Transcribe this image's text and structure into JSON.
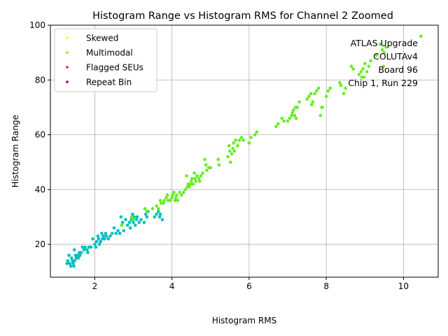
{
  "chart_data": {
    "type": "scatter",
    "title": "Histogram Range vs Histogram RMS for Channel 2 Zoomed",
    "xlabel": "Histogram RMS",
    "ylabel": "Histogram Range",
    "xlim": [
      0.85,
      10.9
    ],
    "ylim": [
      8,
      100
    ],
    "xticks": [
      2,
      4,
      6,
      8,
      10
    ],
    "yticks": [
      20,
      40,
      60,
      80,
      100
    ],
    "grid": true,
    "legend_position": "top-left",
    "legend": [
      {
        "name": "Skewed",
        "color": "#ffff00"
      },
      {
        "name": "Multimodal",
        "color": "#7fff00"
      },
      {
        "name": "Flagged SEUs",
        "color": "#d62728"
      },
      {
        "name": "Repeat Bin",
        "color": "#800080"
      }
    ],
    "annotation": [
      "ATLAS Upgrade",
      "COLUTAv4",
      "Board 96",
      "Chip 1, Run 229"
    ],
    "series": [
      {
        "color": "#00bfbf",
        "points": [
          [
            1.28,
            13
          ],
          [
            1.3,
            14
          ],
          [
            1.33,
            16
          ],
          [
            1.35,
            13
          ],
          [
            1.38,
            12
          ],
          [
            1.4,
            15
          ],
          [
            1.42,
            14
          ],
          [
            1.44,
            13
          ],
          [
            1.46,
            12
          ],
          [
            1.47,
            18
          ],
          [
            1.48,
            14
          ],
          [
            1.5,
            16
          ],
          [
            1.52,
            15
          ],
          [
            1.55,
            16
          ],
          [
            1.58,
            15
          ],
          [
            1.6,
            17
          ],
          [
            1.62,
            16
          ],
          [
            1.65,
            17
          ],
          [
            1.68,
            19
          ],
          [
            1.72,
            18
          ],
          [
            1.75,
            19
          ],
          [
            1.8,
            18
          ],
          [
            1.82,
            17
          ],
          [
            1.85,
            19
          ],
          [
            1.9,
            19
          ],
          [
            1.95,
            22
          ],
          [
            2.0,
            20
          ],
          [
            2.03,
            19
          ],
          [
            2.05,
            21
          ],
          [
            2.08,
            23
          ],
          [
            2.1,
            22
          ],
          [
            2.12,
            20
          ],
          [
            2.15,
            21
          ],
          [
            2.18,
            24
          ],
          [
            2.2,
            22
          ],
          [
            2.22,
            23
          ],
          [
            2.25,
            22
          ],
          [
            2.28,
            24
          ],
          [
            2.3,
            23
          ],
          [
            2.35,
            22
          ],
          [
            2.4,
            23
          ],
          [
            2.45,
            24
          ],
          [
            2.5,
            26
          ],
          [
            2.55,
            24
          ],
          [
            2.6,
            25
          ],
          [
            2.65,
            24
          ],
          [
            2.68,
            30
          ],
          [
            2.7,
            27
          ],
          [
            2.72,
            28
          ],
          [
            2.75,
            25
          ],
          [
            2.8,
            29
          ],
          [
            2.85,
            27
          ],
          [
            2.9,
            28
          ],
          [
            2.92,
            26
          ],
          [
            2.95,
            29
          ],
          [
            2.98,
            31
          ],
          [
            3.0,
            28
          ],
          [
            3.02,
            30
          ],
          [
            3.05,
            27
          ],
          [
            3.08,
            29
          ],
          [
            3.1,
            30
          ],
          [
            3.15,
            28
          ],
          [
            3.2,
            29
          ],
          [
            3.28,
            28
          ],
          [
            3.32,
            31
          ],
          [
            3.35,
            30
          ],
          [
            3.38,
            32
          ],
          [
            3.55,
            30
          ],
          [
            3.6,
            31
          ],
          [
            3.65,
            32
          ],
          [
            3.68,
            30
          ],
          [
            3.7,
            31
          ],
          [
            3.75,
            29
          ]
        ]
      },
      {
        "color": "#66ee22",
        "points": [
          [
            2.7,
            27
          ],
          [
            2.95,
            30
          ],
          [
            3.0,
            29
          ],
          [
            3.3,
            33
          ],
          [
            3.35,
            32
          ],
          [
            3.5,
            33
          ],
          [
            3.6,
            34
          ],
          [
            3.65,
            33
          ],
          [
            3.7,
            36
          ],
          [
            3.72,
            35
          ],
          [
            3.78,
            35
          ],
          [
            3.8,
            36
          ],
          [
            3.85,
            37
          ],
          [
            3.88,
            38
          ],
          [
            3.9,
            36
          ],
          [
            3.95,
            36
          ],
          [
            4.0,
            37
          ],
          [
            4.02,
            38
          ],
          [
            4.05,
            39
          ],
          [
            4.08,
            36
          ],
          [
            4.1,
            37
          ],
          [
            4.12,
            38
          ],
          [
            4.15,
            36
          ],
          [
            4.2,
            39
          ],
          [
            4.25,
            38
          ],
          [
            4.3,
            39
          ],
          [
            4.35,
            40
          ],
          [
            4.38,
            45
          ],
          [
            4.4,
            41
          ],
          [
            4.42,
            42
          ],
          [
            4.45,
            41
          ],
          [
            4.48,
            42
          ],
          [
            4.5,
            43
          ],
          [
            4.52,
            44
          ],
          [
            4.55,
            42
          ],
          [
            4.58,
            46
          ],
          [
            4.6,
            44
          ],
          [
            4.62,
            43
          ],
          [
            4.65,
            45
          ],
          [
            4.7,
            44
          ],
          [
            4.72,
            43
          ],
          [
            4.75,
            45
          ],
          [
            4.8,
            46
          ],
          [
            4.85,
            51
          ],
          [
            4.88,
            49
          ],
          [
            4.9,
            47
          ],
          [
            4.95,
            48
          ],
          [
            5.0,
            48
          ],
          [
            5.2,
            51
          ],
          [
            5.22,
            49
          ],
          [
            5.45,
            52
          ],
          [
            5.48,
            56
          ],
          [
            5.5,
            54
          ],
          [
            5.52,
            50
          ],
          [
            5.55,
            53
          ],
          [
            5.58,
            55
          ],
          [
            5.6,
            57
          ],
          [
            5.62,
            54
          ],
          [
            5.65,
            58
          ],
          [
            5.7,
            56
          ],
          [
            5.75,
            58
          ],
          [
            5.8,
            59
          ],
          [
            5.85,
            58
          ],
          [
            6.0,
            57
          ],
          [
            6.05,
            59
          ],
          [
            6.15,
            60
          ],
          [
            6.2,
            61
          ],
          [
            6.7,
            63
          ],
          [
            6.75,
            64
          ],
          [
            6.85,
            66
          ],
          [
            6.9,
            65
          ],
          [
            7.0,
            65
          ],
          [
            7.05,
            66
          ],
          [
            7.1,
            67
          ],
          [
            7.12,
            68
          ],
          [
            7.15,
            69
          ],
          [
            7.18,
            67
          ],
          [
            7.2,
            70
          ],
          [
            7.22,
            66
          ],
          [
            7.25,
            70
          ],
          [
            7.3,
            72
          ],
          [
            7.5,
            73
          ],
          [
            7.55,
            74
          ],
          [
            7.6,
            75
          ],
          [
            7.62,
            71
          ],
          [
            7.65,
            72
          ],
          [
            7.7,
            75
          ],
          [
            7.75,
            76
          ],
          [
            7.8,
            77
          ],
          [
            7.85,
            67
          ],
          [
            7.88,
            70
          ],
          [
            7.9,
            70
          ],
          [
            8.0,
            74
          ],
          [
            8.05,
            76
          ],
          [
            8.1,
            77
          ],
          [
            8.35,
            79
          ],
          [
            8.38,
            78
          ],
          [
            8.45,
            75
          ],
          [
            8.5,
            77
          ],
          [
            8.65,
            85
          ],
          [
            8.7,
            84
          ],
          [
            8.85,
            82
          ],
          [
            8.9,
            83
          ],
          [
            8.92,
            81
          ],
          [
            8.95,
            84
          ],
          [
            8.98,
            81
          ],
          [
            9.0,
            86
          ],
          [
            9.05,
            83
          ],
          [
            9.1,
            85
          ],
          [
            9.15,
            87
          ],
          [
            9.3,
            89
          ],
          [
            9.4,
            93
          ],
          [
            9.45,
            91
          ],
          [
            9.48,
            85
          ],
          [
            9.5,
            90
          ],
          [
            9.55,
            92
          ],
          [
            10.45,
            96
          ]
        ]
      }
    ]
  }
}
